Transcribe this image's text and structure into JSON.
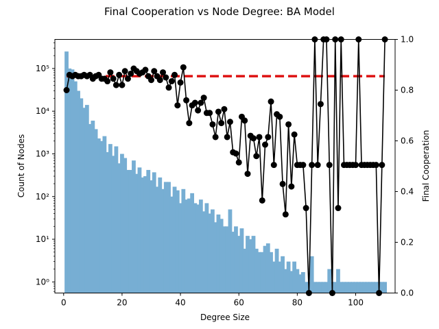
{
  "chart_data": {
    "type": "bar+line",
    "title": "Final Cooperation vs Node Degree: BA Model",
    "xlabel": "Degree Size",
    "ylabel_left": "Count of Nodes",
    "ylabel_right": "Final Cooperation",
    "xlim": [
      -3,
      113.5
    ],
    "ylim_left_log": [
      0.55,
      480000
    ],
    "ylim_right": [
      0,
      1
    ],
    "x_ticks": [
      0,
      20,
      40,
      60,
      80,
      100
    ],
    "y_left_ticks": [
      {
        "value": 1,
        "label": "10⁰"
      },
      {
        "value": 10,
        "label": "10¹"
      },
      {
        "value": 100,
        "label": "10²"
      },
      {
        "value": 1000,
        "label": "10³"
      },
      {
        "value": 10000,
        "label": "10⁴"
      },
      {
        "value": 100000,
        "label": "10⁵"
      }
    ],
    "y_right_ticks": [
      {
        "value": 0.0,
        "label": "0.0"
      },
      {
        "value": 0.2,
        "label": "0.2"
      },
      {
        "value": 0.4,
        "label": "0.4"
      },
      {
        "value": 0.6,
        "label": "0.6"
      },
      {
        "value": 0.8,
        "label": "0.8"
      },
      {
        "value": 1.0,
        "label": "1.0"
      }
    ],
    "grid": false,
    "histogram": {
      "color": "#77aed3",
      "bin_width": 1.36,
      "bins": [
        [
          1,
          250000
        ],
        [
          2,
          100000
        ],
        [
          3,
          95000
        ],
        [
          4,
          50000
        ],
        [
          5,
          30000
        ],
        [
          6,
          20000
        ],
        [
          7,
          12000
        ],
        [
          8,
          14000
        ],
        [
          9,
          5000
        ],
        [
          10,
          6000
        ],
        [
          11,
          3800
        ],
        [
          12,
          2300
        ],
        [
          13,
          2000
        ],
        [
          14,
          2600
        ],
        [
          15,
          1100
        ],
        [
          16,
          1700
        ],
        [
          17,
          900
        ],
        [
          18,
          1500
        ],
        [
          19,
          600
        ],
        [
          20,
          1000
        ],
        [
          21,
          800
        ],
        [
          22,
          420
        ],
        [
          23,
          420
        ],
        [
          24,
          700
        ],
        [
          25,
          340
        ],
        [
          26,
          480
        ],
        [
          27,
          280
        ],
        [
          28,
          300
        ],
        [
          29,
          420
        ],
        [
          30,
          240
        ],
        [
          31,
          370
        ],
        [
          32,
          170
        ],
        [
          33,
          280
        ],
        [
          34,
          150
        ],
        [
          35,
          220
        ],
        [
          36,
          220
        ],
        [
          37,
          100
        ],
        [
          38,
          170
        ],
        [
          39,
          140
        ],
        [
          40,
          70
        ],
        [
          41,
          150
        ],
        [
          42,
          85
        ],
        [
          43,
          90
        ],
        [
          44,
          120
        ],
        [
          45,
          70
        ],
        [
          46,
          65
        ],
        [
          47,
          85
        ],
        [
          48,
          45
        ],
        [
          49,
          70
        ],
        [
          50,
          40
        ],
        [
          51,
          50
        ],
        [
          52,
          25
        ],
        [
          53,
          38
        ],
        [
          54,
          30
        ],
        [
          55,
          20
        ],
        [
          56,
          20
        ],
        [
          57,
          50
        ],
        [
          58,
          15
        ],
        [
          59,
          20
        ],
        [
          60,
          12
        ],
        [
          61,
          18
        ],
        [
          62,
          6
        ],
        [
          63,
          12
        ],
        [
          64,
          10
        ],
        [
          65,
          12
        ],
        [
          66,
          6
        ],
        [
          67,
          5
        ],
        [
          68,
          5
        ],
        [
          69,
          7
        ],
        [
          70,
          8
        ],
        [
          71,
          5
        ],
        [
          72,
          3
        ],
        [
          73,
          6
        ],
        [
          74,
          3
        ],
        [
          75,
          4
        ],
        [
          76,
          2
        ],
        [
          77,
          3
        ],
        [
          78,
          1.8
        ],
        [
          79,
          3
        ],
        [
          80,
          2
        ],
        [
          81,
          1.5
        ],
        [
          82,
          1.7
        ],
        [
          83,
          1
        ],
        [
          84,
          1
        ],
        [
          85,
          4
        ],
        [
          86,
          1
        ],
        [
          87,
          1
        ],
        [
          88,
          1
        ],
        [
          89,
          1
        ],
        [
          90,
          1
        ],
        [
          91,
          2
        ],
        [
          92,
          1
        ],
        [
          93,
          1
        ],
        [
          94,
          2
        ],
        [
          95,
          1
        ],
        [
          96,
          1
        ],
        [
          97,
          1
        ],
        [
          98,
          1
        ],
        [
          99,
          1
        ],
        [
          100,
          1
        ],
        [
          101,
          1
        ],
        [
          102,
          1
        ],
        [
          103,
          1
        ],
        [
          104,
          1
        ],
        [
          105,
          1
        ],
        [
          106,
          1
        ],
        [
          107,
          1
        ],
        [
          108,
          1
        ],
        [
          109,
          1
        ],
        [
          110,
          1
        ]
      ]
    },
    "series": [
      {
        "type": "line",
        "axis": "right",
        "color": "#000000",
        "marker": "circle",
        "points": [
          [
            1,
            0.8
          ],
          [
            2,
            0.86
          ],
          [
            3,
            0.855
          ],
          [
            4,
            0.86
          ],
          [
            5,
            0.855
          ],
          [
            6,
            0.855
          ],
          [
            7,
            0.86
          ],
          [
            8,
            0.855
          ],
          [
            9,
            0.86
          ],
          [
            10,
            0.845
          ],
          [
            11,
            0.855
          ],
          [
            12,
            0.86
          ],
          [
            13,
            0.845
          ],
          [
            14,
            0.845
          ],
          [
            15,
            0.835
          ],
          [
            16,
            0.87
          ],
          [
            17,
            0.845
          ],
          [
            18,
            0.82
          ],
          [
            19,
            0.86
          ],
          [
            20,
            0.82
          ],
          [
            21,
            0.875
          ],
          [
            22,
            0.845
          ],
          [
            23,
            0.865
          ],
          [
            24,
            0.885
          ],
          [
            25,
            0.875
          ],
          [
            26,
            0.865
          ],
          [
            27,
            0.87
          ],
          [
            28,
            0.88
          ],
          [
            29,
            0.855
          ],
          [
            30,
            0.84
          ],
          [
            31,
            0.875
          ],
          [
            32,
            0.855
          ],
          [
            33,
            0.84
          ],
          [
            34,
            0.87
          ],
          [
            35,
            0.85
          ],
          [
            36,
            0.81
          ],
          [
            37,
            0.835
          ],
          [
            38,
            0.86
          ],
          [
            39,
            0.74
          ],
          [
            40,
            0.83
          ],
          [
            41,
            0.89
          ],
          [
            42,
            0.76
          ],
          [
            43,
            0.67
          ],
          [
            44,
            0.74
          ],
          [
            45,
            0.75
          ],
          [
            46,
            0.72
          ],
          [
            47,
            0.75
          ],
          [
            48,
            0.77
          ],
          [
            49,
            0.71
          ],
          [
            50,
            0.71
          ],
          [
            51,
            0.665
          ],
          [
            52,
            0.615
          ],
          [
            53,
            0.715
          ],
          [
            54,
            0.67
          ],
          [
            55,
            0.725
          ],
          [
            56,
            0.615
          ],
          [
            57,
            0.675
          ],
          [
            58,
            0.555
          ],
          [
            59,
            0.55
          ],
          [
            60,
            0.515
          ],
          [
            61,
            0.695
          ],
          [
            62,
            0.68
          ],
          [
            63,
            0.47
          ],
          [
            64,
            0.62
          ],
          [
            65,
            0.61
          ],
          [
            66,
            0.54
          ],
          [
            67,
            0.615
          ],
          [
            68,
            0.365
          ],
          [
            69,
            0.585
          ],
          [
            70,
            0.615
          ],
          [
            71,
            0.755
          ],
          [
            72,
            0.505
          ],
          [
            73,
            0.705
          ],
          [
            74,
            0.695
          ],
          [
            75,
            0.43
          ],
          [
            76,
            0.31
          ],
          [
            77,
            0.665
          ],
          [
            78,
            0.42
          ],
          [
            79,
            0.625
          ],
          [
            80,
            0.505
          ],
          [
            81,
            0.505
          ],
          [
            82,
            0.505
          ],
          [
            83,
            0.335
          ],
          [
            84,
            0.0
          ],
          [
            85,
            0.505
          ],
          [
            86,
            1.0
          ],
          [
            87,
            0.505
          ],
          [
            88,
            0.745
          ],
          [
            89,
            1.0
          ],
          [
            90,
            1.0
          ],
          [
            91,
            0.505
          ],
          [
            92,
            0.0
          ],
          [
            93,
            1.0
          ],
          [
            94,
            0.335
          ],
          [
            95,
            1.0
          ],
          [
            96,
            0.505
          ],
          [
            97,
            0.505
          ],
          [
            98,
            0.505
          ],
          [
            99,
            0.505
          ],
          [
            100,
            0.505
          ],
          [
            101,
            1.0
          ],
          [
            102,
            0.505
          ],
          [
            103,
            0.505
          ],
          [
            104,
            0.505
          ],
          [
            105,
            0.505
          ],
          [
            106,
            0.505
          ],
          [
            107,
            0.505
          ],
          [
            108,
            0.0
          ],
          [
            109,
            0.505
          ],
          [
            110,
            1.0
          ]
        ]
      }
    ],
    "reference_line": {
      "axis": "right",
      "value": 0.855,
      "x_range": [
        1,
        110
      ],
      "color": "#dd1111",
      "style": "dashed"
    }
  }
}
